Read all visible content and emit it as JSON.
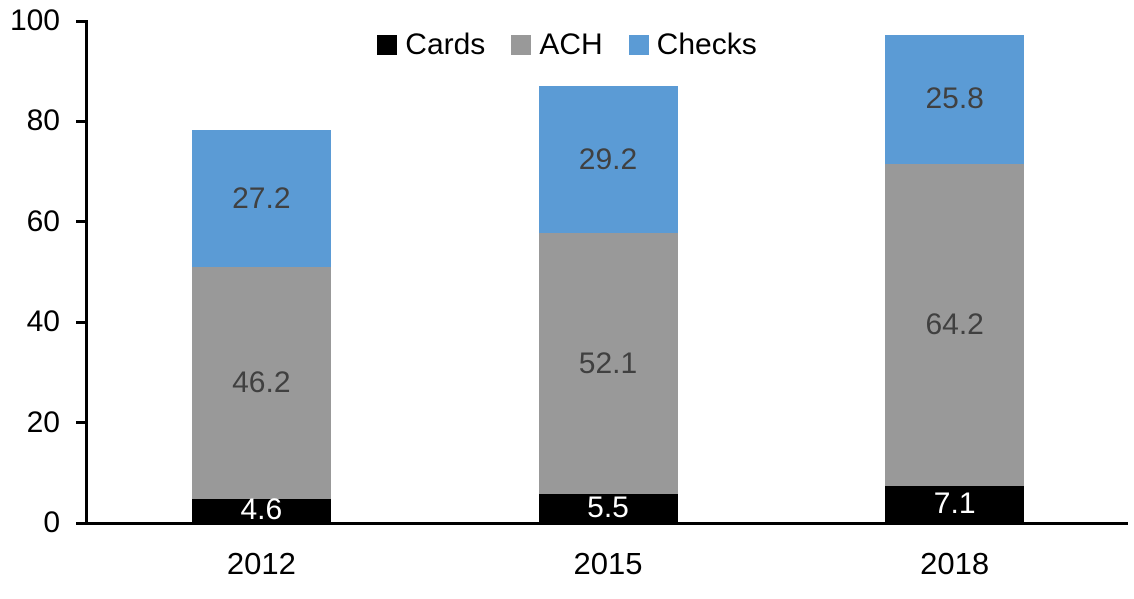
{
  "chart_data": {
    "type": "bar",
    "stacked": true,
    "title": "",
    "xlabel": "",
    "ylabel": "",
    "categories": [
      "2012",
      "2015",
      "2018"
    ],
    "series": [
      {
        "name": "Cards",
        "color": "#000000",
        "label_color": "#FFFFFF",
        "values": [
          4.6,
          5.5,
          7.1
        ]
      },
      {
        "name": "ACH",
        "color": "#999999",
        "label_color": "#404040",
        "values": [
          46.2,
          52.1,
          64.2
        ]
      },
      {
        "name": "Checks",
        "color": "#5B9BD5",
        "label_color": "#404040",
        "values": [
          27.2,
          29.2,
          25.8
        ]
      }
    ],
    "totals": [
      78.0,
      86.8,
      97.1
    ],
    "ylim": [
      0,
      100
    ],
    "yticks": [
      0,
      20,
      40,
      60,
      80,
      100
    ],
    "legend_position": "top",
    "legend_labels": [
      "Cards",
      "ACH",
      "Checks"
    ],
    "grid": false,
    "value_labels_shown": true
  },
  "colors": {
    "axis": "#000000",
    "background": "#FFFFFF",
    "tick_label": "#000000"
  }
}
